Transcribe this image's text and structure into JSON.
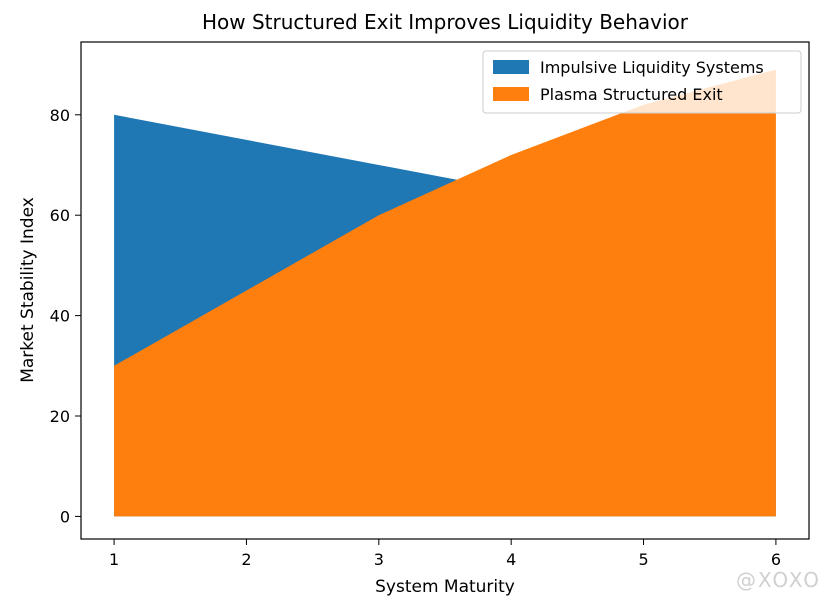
{
  "chart_data": {
    "type": "area",
    "title": "How Structured Exit Improves Liquidity Behavior",
    "xlabel": "System Maturity",
    "ylabel": "Market Stability Index",
    "x": [
      1,
      2,
      3,
      4,
      5,
      6
    ],
    "xlim": [
      0.75,
      6.25
    ],
    "ylim": [
      -4.5,
      94.5
    ],
    "xticks": [
      1,
      2,
      3,
      4,
      5,
      6
    ],
    "yticks": [
      0,
      20,
      40,
      60,
      80
    ],
    "legend_position": "top-right",
    "grid": false,
    "series": [
      {
        "name": "Impulsive Liquidity Systems",
        "color": "#1f77b4",
        "values": [
          80,
          75,
          70,
          65,
          60,
          55
        ]
      },
      {
        "name": "Plasma Structured Exit",
        "color": "#ff7f0e",
        "values": [
          30,
          45,
          60,
          72,
          82,
          89
        ]
      }
    ]
  },
  "watermark": "@XOXO"
}
